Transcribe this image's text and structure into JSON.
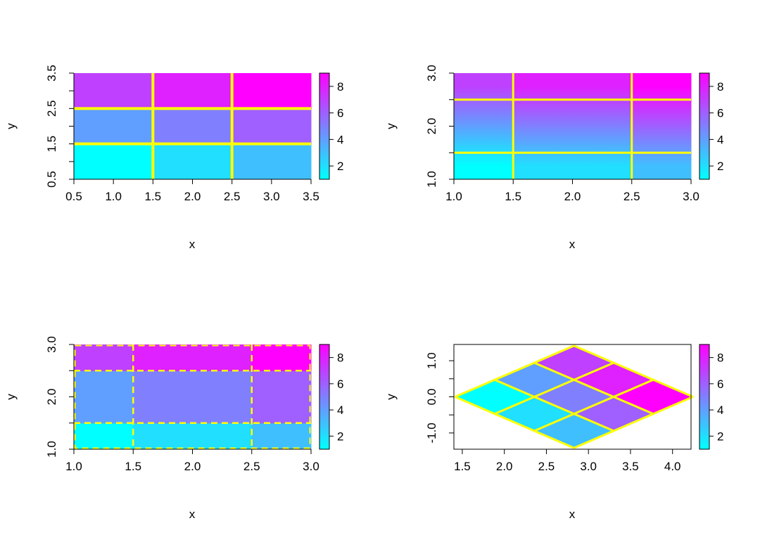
{
  "chart_data": [
    {
      "type": "heatmap",
      "title": "",
      "xlabel": "x",
      "ylabel": "y",
      "xlim": [
        0.5,
        3.5
      ],
      "ylim": [
        0.5,
        3.5
      ],
      "xticks": [
        "0.5",
        "1.0",
        "1.5",
        "2.0",
        "2.5",
        "3.0",
        "3.5"
      ],
      "yticks": [
        "0.5",
        "1.5",
        "2.5",
        "3.5"
      ],
      "x_boundaries": [
        0.5,
        1.5,
        2.5,
        3.5
      ],
      "y_boundaries": [
        0.5,
        1.5,
        2.5,
        3.5
      ],
      "z": [
        [
          1,
          2,
          3
        ],
        [
          4,
          5,
          6
        ],
        [
          7,
          8,
          9
        ]
      ],
      "interpolation": "none",
      "grid_lines": {
        "x": [
          1.5,
          2.5
        ],
        "y": [
          1.5,
          2.5
        ],
        "style": "solid"
      },
      "colorbar": {
        "range": [
          1,
          9
        ],
        "ticks": [
          "2",
          "4",
          "6",
          "8"
        ]
      }
    },
    {
      "type": "heatmap",
      "title": "",
      "xlabel": "x",
      "ylabel": "y",
      "xlim": [
        1.0,
        3.0
      ],
      "ylim": [
        1.0,
        3.0
      ],
      "xticks": [
        "1.0",
        "1.5",
        "2.0",
        "2.5",
        "3.0"
      ],
      "yticks": [
        "1.0",
        "2.0",
        "3.0"
      ],
      "x_boundaries": [
        1.0,
        1.5,
        2.5,
        3.0
      ],
      "y_boundaries": [
        1.0,
        1.5,
        2.5,
        3.0
      ],
      "z": [
        [
          1,
          2,
          3
        ],
        [
          4,
          5,
          6
        ],
        [
          7,
          8,
          9
        ]
      ],
      "interpolation": "vertical",
      "grid_lines": {
        "x": [
          1.5,
          2.5
        ],
        "y": [
          1.5,
          2.5
        ],
        "style": "solid"
      },
      "colorbar": {
        "range": [
          1,
          9
        ],
        "ticks": [
          "2",
          "4",
          "6",
          "8"
        ]
      }
    },
    {
      "type": "heatmap",
      "title": "",
      "xlabel": "x",
      "ylabel": "y",
      "xlim": [
        1.0,
        3.0
      ],
      "ylim": [
        1.0,
        3.0
      ],
      "xticks": [
        "1.0",
        "1.5",
        "2.0",
        "2.5",
        "3.0"
      ],
      "yticks": [
        "1.0",
        "2.0",
        "3.0"
      ],
      "x_boundaries": [
        1.0,
        1.5,
        2.5,
        3.0
      ],
      "y_boundaries": [
        1.0,
        1.5,
        2.5,
        3.0
      ],
      "z": [
        [
          1,
          2,
          3
        ],
        [
          4,
          5,
          6
        ],
        [
          7,
          8,
          9
        ]
      ],
      "interpolation": "none",
      "grid_lines": {
        "x": [
          1.5,
          2.5
        ],
        "y": [
          1.5,
          2.5
        ],
        "style": "dashed"
      },
      "colorbar": {
        "range": [
          1,
          9
        ],
        "ticks": [
          "2",
          "4",
          "6",
          "8"
        ]
      }
    },
    {
      "type": "heatmap",
      "title": "",
      "xlabel": "x",
      "ylabel": "y",
      "xlim": [
        1.4,
        4.22
      ],
      "ylim": [
        -1.45,
        1.45
      ],
      "xticks": [
        "1.5",
        "2.0",
        "2.5",
        "3.0",
        "3.5",
        "4.0"
      ],
      "yticks": [
        "-1.0",
        "0.0",
        "1.0"
      ],
      "grid_type": "rotated diamond (3x3 cells)",
      "outer_vertices": [
        [
          1.414,
          0.0
        ],
        [
          2.828,
          1.414
        ],
        [
          4.243,
          0.0
        ],
        [
          2.828,
          -1.414
        ]
      ],
      "z": [
        [
          1,
          2,
          3
        ],
        [
          4,
          5,
          6
        ],
        [
          7,
          8,
          9
        ]
      ],
      "colorbar": {
        "range": [
          1,
          9
        ],
        "ticks": [
          "2",
          "4",
          "6",
          "8"
        ]
      }
    }
  ],
  "colors": {
    "scale_low": "#00ffff",
    "scale_high": "#ff00ff",
    "grid_lines": "#ffff00",
    "axis": "#000000",
    "background": "#ffffff"
  }
}
